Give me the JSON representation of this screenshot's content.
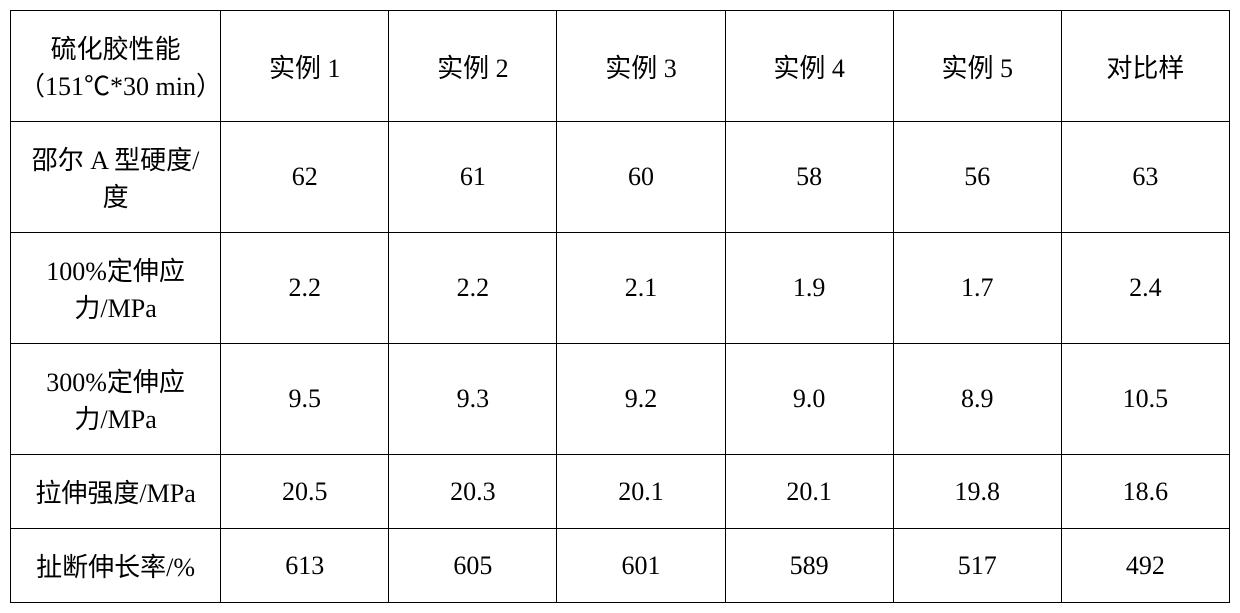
{
  "table": {
    "columns": [
      "硫化胶性能（151℃*30 min）",
      "实例 1",
      "实例 2",
      "实例 3",
      "实例 4",
      "实例 5",
      "对比样"
    ],
    "rows": [
      {
        "label": "邵尔 A 型硬度/度",
        "values": [
          "62",
          "61",
          "60",
          "58",
          "56",
          "63"
        ]
      },
      {
        "label": "100%定伸应力/MPa",
        "values": [
          "2.2",
          "2.2",
          "2.1",
          "1.9",
          "1.7",
          "2.4"
        ]
      },
      {
        "label": "300%定伸应力/MPa",
        "values": [
          "9.5",
          "9.3",
          "9.2",
          "9.0",
          "8.9",
          "10.5"
        ]
      },
      {
        "label": "拉伸强度/MPa",
        "values": [
          "20.5",
          "20.3",
          "20.1",
          "20.1",
          "19.8",
          "18.6"
        ]
      },
      {
        "label": "扯断伸长率/%",
        "values": [
          "613",
          "605",
          "601",
          "589",
          "517",
          "492"
        ]
      }
    ],
    "border_color": "#000000",
    "background_color": "#ffffff",
    "font_size": 26,
    "col_widths": {
      "first": 210,
      "data": 168
    }
  }
}
